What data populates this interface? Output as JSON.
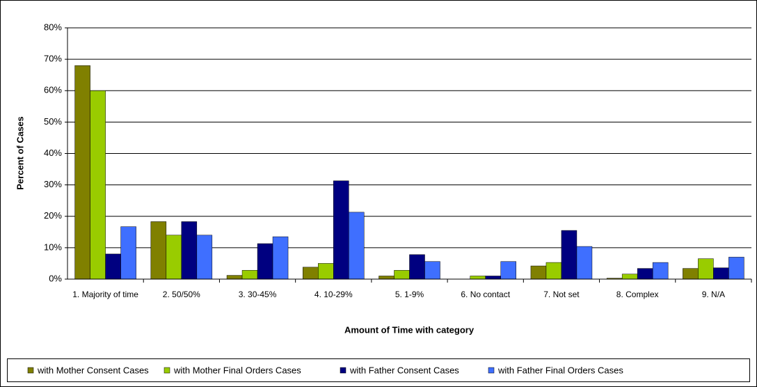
{
  "chart_data": {
    "type": "bar",
    "y_label": "Percent of Cases",
    "x_label": "Amount of Time with category",
    "categories": [
      "1. Majority of time",
      "2. 50/50%",
      "3. 30-45%",
      "4. 10-29%",
      "5. 1-9%",
      "6. No contact",
      "7. Not set",
      "8. Complex",
      "9. N/A"
    ],
    "series": [
      {
        "name": "with Mother Consent Cases",
        "color": "#808000",
        "values": [
          68,
          18.3,
          1.2,
          3.8,
          1,
          0,
          4.2,
          0.3,
          3.4
        ]
      },
      {
        "name": "with Mother Final Orders Cases",
        "color": "#99cc00",
        "values": [
          60,
          14,
          2.8,
          5,
          2.8,
          1,
          5.3,
          1.6,
          6.5
        ]
      },
      {
        "name": "with Father Consent Cases",
        "color": "#000080",
        "values": [
          8,
          18.3,
          11.3,
          31.3,
          7.8,
          1,
          15.5,
          3.4,
          3.6
        ]
      },
      {
        "name": "with Father Final Orders Cases",
        "color": "#3f6fff",
        "values": [
          16.7,
          14,
          13.5,
          21.3,
          5.6,
          5.6,
          10.4,
          5.3,
          7
        ]
      }
    ],
    "ylim": [
      0,
      80
    ],
    "yticks": [
      {
        "value": 0,
        "label": "0%"
      },
      {
        "value": 10,
        "label": "10%"
      },
      {
        "value": 20,
        "label": "20%"
      },
      {
        "value": 30,
        "label": "30%"
      },
      {
        "value": 40,
        "label": "40%"
      },
      {
        "value": 50,
        "label": "50%"
      },
      {
        "value": 60,
        "label": "60%"
      },
      {
        "value": 70,
        "label": "70%"
      },
      {
        "value": 80,
        "label": "80%"
      }
    ],
    "grid": true,
    "legend": "bottom"
  }
}
